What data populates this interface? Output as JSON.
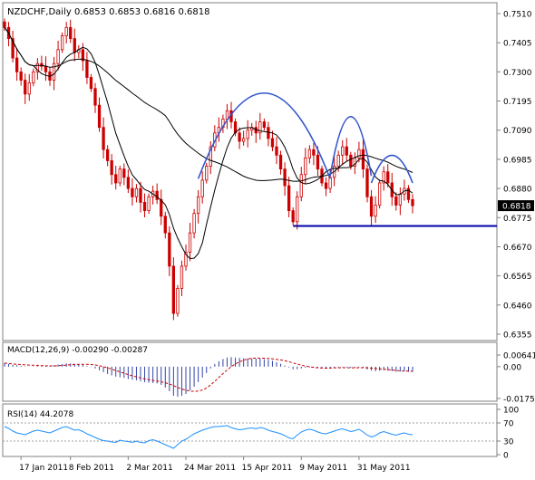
{
  "symbol_header": "NZDCHF,Daily  0.6853 0.6853 0.6816 0.6818",
  "colors": {
    "background": "#ffffff",
    "frame": "#808080",
    "candle": "#cc0000",
    "ma_fast": "#000000",
    "ma_slow": "#000000",
    "pattern_arcs": "#3355cc",
    "neckline": "#0000aa",
    "macd_hist": "#3344aa",
    "macd_signal": "#cc0000",
    "rsi_line": "#1e90ff",
    "price_tag_bg": "#000000",
    "price_tag_text": "#ffffff"
  },
  "price_axis": {
    "labels": [
      "0.7510",
      "0.7405",
      "0.7300",
      "0.7195",
      "0.7090",
      "0.6985",
      "0.6880",
      "0.6775",
      "0.6670",
      "0.6565",
      "0.6460",
      "0.6355"
    ],
    "last_price_tag": "0.6818"
  },
  "date_axis": {
    "labels": [
      "17 Jan 2011",
      "8 Feb 2011",
      "2 Mar 2011",
      "24 Mar 2011",
      "15 Apr 2011",
      "9 May 2011",
      "31 May 2011"
    ]
  },
  "macd_panel": {
    "title": "MACD(12,26,9) -0.00290 -0.00287",
    "axis_labels": [
      "0.00641",
      "0.00",
      "-0.01751"
    ]
  },
  "rsi_panel": {
    "title": "RSI(14) 44.2078",
    "axis_labels": [
      "100",
      "70",
      "30",
      "0"
    ]
  },
  "chart_data": {
    "type": "candlestick",
    "instrument": "NZDCHF",
    "timeframe": "Daily",
    "ohlc_last": {
      "open": 0.6853,
      "high": 0.6853,
      "low": 0.6816,
      "close": 0.6818
    },
    "ylim": [
      0.6355,
      0.751
    ],
    "closes": [
      0.746,
      0.742,
      0.735,
      0.73,
      0.727,
      0.722,
      0.726,
      0.73,
      0.733,
      0.732,
      0.73,
      0.727,
      0.733,
      0.738,
      0.743,
      0.746,
      0.742,
      0.737,
      0.738,
      0.734,
      0.728,
      0.724,
      0.718,
      0.71,
      0.702,
      0.698,
      0.693,
      0.69,
      0.695,
      0.692,
      0.688,
      0.685,
      0.688,
      0.683,
      0.68,
      0.685,
      0.687,
      0.684,
      0.678,
      0.672,
      0.66,
      0.643,
      0.652,
      0.66,
      0.665,
      0.672,
      0.679,
      0.685,
      0.691,
      0.696,
      0.703,
      0.708,
      0.71,
      0.713,
      0.716,
      0.712,
      0.708,
      0.705,
      0.706,
      0.709,
      0.71,
      0.708,
      0.712,
      0.71,
      0.706,
      0.703,
      0.7,
      0.695,
      0.689,
      0.68,
      0.676,
      0.685,
      0.693,
      0.699,
      0.702,
      0.7,
      0.695,
      0.69,
      0.688,
      0.692,
      0.696,
      0.7,
      0.703,
      0.7,
      0.696,
      0.699,
      0.702,
      0.695,
      0.685,
      0.678,
      0.682,
      0.69,
      0.694,
      0.69,
      0.685,
      0.682,
      0.686,
      0.688,
      0.684,
      0.6818
    ],
    "neckline": 0.6745,
    "macd": {
      "params": [
        12,
        26,
        9
      ],
      "main": -0.0029,
      "signal": -0.00287,
      "ylim": [
        -0.01751,
        0.00641
      ],
      "hist": [
        0.002,
        0.0015,
        0.001,
        0.0008,
        0.0005,
        0.0002,
        0.0001,
        0.0002,
        0.0004,
        0.0005,
        0.0006,
        0.0006,
        0.0008,
        0.0012,
        0.0015,
        0.0018,
        0.0018,
        0.0016,
        0.0014,
        0.001,
        0.0004,
        -0.0002,
        -0.001,
        -0.002,
        -0.003,
        -0.004,
        -0.0048,
        -0.0055,
        -0.0058,
        -0.0062,
        -0.0068,
        -0.0072,
        -0.0075,
        -0.008,
        -0.0085,
        -0.0088,
        -0.009,
        -0.0092,
        -0.01,
        -0.0115,
        -0.0135,
        -0.016,
        -0.0165,
        -0.016,
        -0.015,
        -0.013,
        -0.011,
        -0.0085,
        -0.006,
        -0.0035,
        -0.001,
        0.0015,
        0.003,
        0.0042,
        0.005,
        0.0052,
        0.005,
        0.0048,
        0.0046,
        0.0046,
        0.0046,
        0.0044,
        0.0044,
        0.0042,
        0.0038,
        0.0032,
        0.0025,
        0.0016,
        0.0006,
        -0.0004,
        -0.0014,
        -0.0014,
        -0.001,
        -0.0006,
        -0.0004,
        -0.0004,
        -0.0006,
        -0.0008,
        -0.001,
        -0.0008,
        -0.0006,
        -0.0004,
        -0.0003,
        -0.0004,
        -0.0006,
        -0.0006,
        -0.0004,
        -0.0008,
        -0.0015,
        -0.0022,
        -0.0025,
        -0.0022,
        -0.002,
        -0.0022,
        -0.0025,
        -0.0028,
        -0.0027,
        -0.0026,
        -0.0028,
        -0.0029
      ]
    },
    "rsi": {
      "period": 14,
      "last": 44.2078,
      "levels": [
        70,
        30
      ],
      "ylim": [
        0,
        100
      ],
      "values": [
        62,
        58,
        52,
        48,
        46,
        44,
        48,
        52,
        54,
        52,
        50,
        48,
        52,
        56,
        60,
        62,
        58,
        54,
        55,
        51,
        46,
        42,
        38,
        34,
        31,
        30,
        28,
        27,
        32,
        30,
        29,
        27,
        30,
        27,
        26,
        31,
        33,
        30,
        26,
        22,
        18,
        14,
        22,
        30,
        34,
        40,
        46,
        50,
        54,
        57,
        60,
        62,
        62,
        63,
        64,
        60,
        57,
        55,
        56,
        58,
        59,
        57,
        60,
        58,
        54,
        51,
        49,
        46,
        42,
        37,
        35,
        43,
        50,
        54,
        56,
        54,
        50,
        47,
        46,
        49,
        52,
        55,
        57,
        54,
        51,
        53,
        56,
        50,
        43,
        39,
        42,
        48,
        51,
        48,
        45,
        43,
        46,
        48,
        45,
        44
      ]
    }
  }
}
